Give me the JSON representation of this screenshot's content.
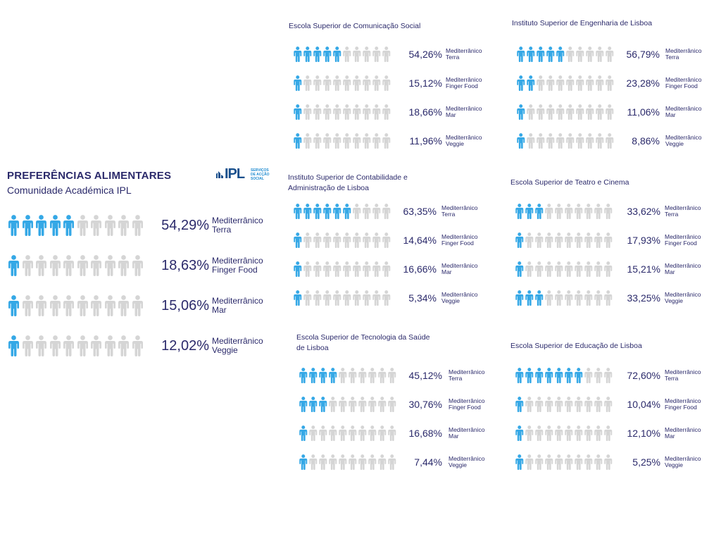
{
  "colors": {
    "active": "#35a8e6",
    "inactive": "#d5d5d5",
    "text": "#2b2a6b"
  },
  "icon_name": "person-icon",
  "logo": {
    "mark": "IPL",
    "lines": [
      "SERVIÇOS",
      "DE ACÇÃO",
      "SOCIAL"
    ]
  },
  "header": {
    "title": "PREFERÊNCIAS ALIMENTARES",
    "subtitle": "Comunidade Académica IPL"
  },
  "chart_data": [
    {
      "type": "pictogram",
      "title": "Comunidade Académica IPL",
      "units_per_icon_of_10": true,
      "categories": [
        [
          "Mediterrânico",
          "Terra"
        ],
        [
          "Mediterrânico",
          "Finger Food"
        ],
        [
          "Mediterrânico",
          "Mar"
        ],
        [
          "Mediterrânico",
          "Veggie"
        ]
      ],
      "values": [
        "54,29%",
        "18,63%",
        "15,06%",
        "12,02%"
      ],
      "filled": [
        5,
        1,
        1,
        1
      ]
    },
    {
      "type": "pictogram",
      "title": "Escola Superior de Comunicação Social",
      "categories": [
        [
          "Mediterrânico",
          "Terra"
        ],
        [
          "Mediterrânico",
          "Finger Food"
        ],
        [
          "Mediterrânico",
          "Mar"
        ],
        [
          "Mediterrânico",
          "Veggie"
        ]
      ],
      "values": [
        "54,26%",
        "15,12%",
        "18,66%",
        "11,96%"
      ],
      "filled": [
        5,
        1,
        1,
        1
      ]
    },
    {
      "type": "pictogram",
      "title": "Instituto Superior de Engenharia de Lisboa",
      "categories": [
        [
          "Mediterrânico",
          "Terra"
        ],
        [
          "Mediterrânico",
          "Finger Food"
        ],
        [
          "Mediterrânico",
          "Mar"
        ],
        [
          "Mediterrânico",
          "Veggie"
        ]
      ],
      "values": [
        "56,79%",
        "23,28%",
        "11,06%",
        "8,86%"
      ],
      "filled": [
        5,
        2,
        1,
        1
      ]
    },
    {
      "type": "pictogram",
      "title": "Instituto Superior de Contabilidade e Administração de Lisboa",
      "categories": [
        [
          "Mediterrânico",
          "Terra"
        ],
        [
          "Mediterrânico",
          "Finger Food"
        ],
        [
          "Mediterrânico",
          "Mar"
        ],
        [
          "Mediterrânico",
          "Veggie"
        ]
      ],
      "values": [
        "63,35%",
        "14,64%",
        "16,66%",
        "5,34%"
      ],
      "filled": [
        6,
        1,
        1,
        1
      ]
    },
    {
      "type": "pictogram",
      "title": "Escola Superior de Teatro e Cinema",
      "categories": [
        [
          "Mediterrânico",
          "Terra"
        ],
        [
          "Mediterrânico",
          "Finger Food"
        ],
        [
          "Mediterrânico",
          "Mar"
        ],
        [
          "Mediterrânico",
          "Veggie"
        ]
      ],
      "values": [
        "33,62%",
        "17,93%",
        "15,21%",
        "33,25%"
      ],
      "filled": [
        3,
        1,
        1,
        3
      ]
    },
    {
      "type": "pictogram",
      "title": "Escola Superior de Tecnologia da Saúde de Lisboa",
      "categories": [
        [
          "Mediterrânico",
          "Terra"
        ],
        [
          "Mediterrânico",
          "Finger Food"
        ],
        [
          "Mediterrânico",
          "Mar"
        ],
        [
          "Mediterrânico",
          "Veggie"
        ]
      ],
      "values": [
        "45,12%",
        "30,76%",
        "16,68%",
        "7,44%"
      ],
      "filled": [
        4,
        3,
        1,
        1
      ]
    },
    {
      "type": "pictogram",
      "title": "Escola Superior de Educação de Lisboa",
      "categories": [
        [
          "Mediterrânico",
          "Terra"
        ],
        [
          "Mediterrânico",
          "Finger Food"
        ],
        [
          "Mediterrânico",
          "Mar"
        ],
        [
          "Mediterrânico",
          "Veggie"
        ]
      ],
      "values": [
        "72,60%",
        "10,04%",
        "12,10%",
        "5,25%"
      ],
      "filled": [
        7,
        1,
        1,
        1
      ]
    }
  ]
}
